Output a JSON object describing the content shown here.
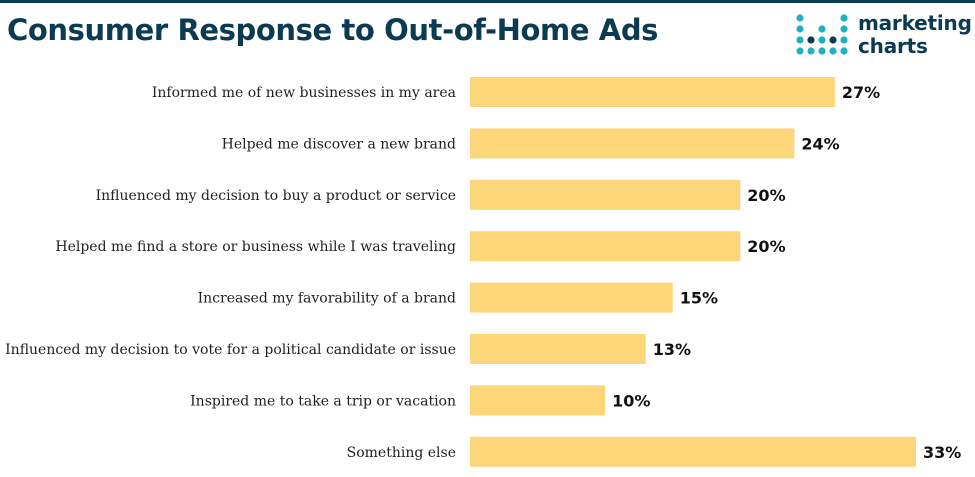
{
  "logo": {
    "line1": "marketing",
    "line2": "charts"
  },
  "colors": {
    "bar": "#fdd67a",
    "title": "#0b3a53",
    "logo_teal": "#20b0c4"
  },
  "chart_data": {
    "type": "bar",
    "orientation": "horizontal",
    "title": "Consumer Response to Out-of-Home Ads",
    "categories": [
      "Informed me of new businesses in my area",
      "Helped me discover a new brand",
      "Influenced my decision to buy a product or service",
      "Helped me find a store or business while I was traveling",
      "Increased my favorability of a brand",
      "Influenced my decision to vote for a political candidate or issue",
      "Inspired me to take a trip or vacation",
      "Something else"
    ],
    "values": [
      27,
      24,
      20,
      20,
      15,
      13,
      10,
      33
    ],
    "value_labels": [
      "27%",
      "24%",
      "20%",
      "20%",
      "15%",
      "13%",
      "10%",
      "33%"
    ],
    "unit": "%",
    "xlim": [
      0,
      33
    ],
    "grid": false,
    "legend": "none"
  }
}
